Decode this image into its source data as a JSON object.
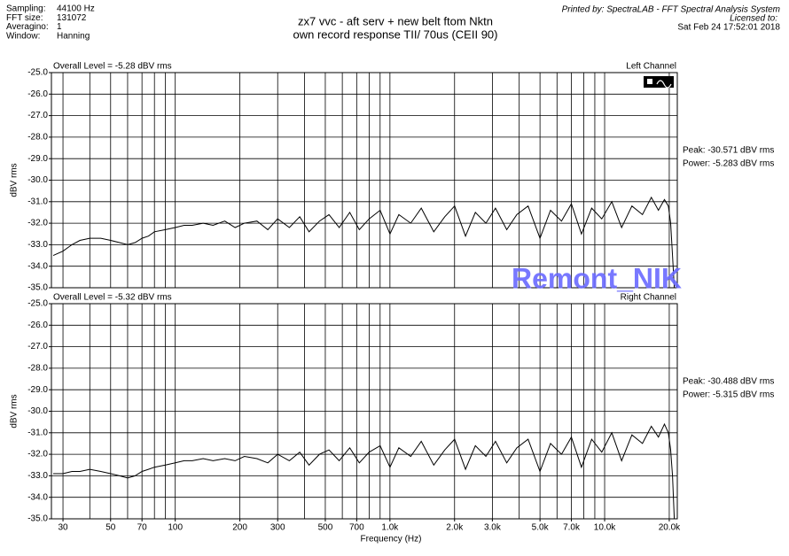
{
  "header": {
    "info": [
      {
        "label": "Sampling:",
        "value": "44100 Hz"
      },
      {
        "label": "FFT size:",
        "value": "131072"
      },
      {
        "label": "Averagino:",
        "value": "1"
      },
      {
        "label": "Window:",
        "value": "Hanning"
      }
    ],
    "title": [
      "zx7 vvc -  aft serv + new belt ftom Nktn",
      "own record response TII/ 70us (CEII 90)"
    ],
    "printed_by": "Printed by: SpectraLAB - FFT Spectral Analysis System",
    "licensed": "Licensed to:",
    "date": "Sat Feb 24 17:52:01 2018"
  },
  "watermark": "Remont_NIK",
  "chart_data": [
    {
      "type": "line",
      "title": "Left Channel",
      "overall": "Overall Level = -5.28 dBV rms",
      "peak": "Peak: -30.571 dBV rms",
      "power": "Power: -5.283 dBV rms",
      "ylabel": "dBV rms",
      "log_x": true,
      "grid": true,
      "color": "#000000",
      "xlim": [
        26.5,
        21800
      ],
      "ylim": [
        -35,
        -25
      ],
      "yticks": [
        {
          "value": -25,
          "label": "-25.0"
        },
        {
          "value": -26,
          "label": "-26.0"
        },
        {
          "value": -27,
          "label": "-27.0"
        },
        {
          "value": -28,
          "label": "-28.0"
        },
        {
          "value": -29,
          "label": "-29.0"
        },
        {
          "value": -30,
          "label": "-30.0"
        },
        {
          "value": -31,
          "label": "-31.0"
        },
        {
          "value": -32,
          "label": "-32.0"
        },
        {
          "value": -33,
          "label": "-33.0"
        },
        {
          "value": -34,
          "label": "-34.0"
        },
        {
          "value": -35,
          "label": "-35.0"
        }
      ],
      "xgrid": [
        30,
        40,
        50,
        60,
        70,
        80,
        90,
        100,
        200,
        300,
        400,
        500,
        600,
        700,
        800,
        900,
        1000,
        2000,
        3000,
        4000,
        5000,
        6000,
        7000,
        8000,
        9000,
        10000,
        20000
      ],
      "x": [
        27,
        30,
        33,
        36,
        40,
        45,
        50,
        55,
        60,
        65,
        70,
        75,
        80,
        90,
        100,
        110,
        120,
        135,
        150,
        170,
        190,
        210,
        240,
        270,
        300,
        340,
        380,
        420,
        470,
        520,
        580,
        650,
        720,
        800,
        900,
        1000,
        1100,
        1250,
        1400,
        1600,
        1800,
        2000,
        2250,
        2500,
        2800,
        3100,
        3500,
        3900,
        4400,
        5000,
        5600,
        6300,
        7000,
        7800,
        8700,
        9700,
        10800,
        12000,
        13400,
        15000,
        16500,
        17800,
        19000,
        19800,
        20300,
        20700,
        21100
      ],
      "values": [
        -33.5,
        -33.3,
        -33.0,
        -32.8,
        -32.7,
        -32.7,
        -32.8,
        -32.9,
        -33.0,
        -32.9,
        -32.7,
        -32.6,
        -32.4,
        -32.3,
        -32.2,
        -32.1,
        -32.1,
        -32.0,
        -32.1,
        -31.9,
        -32.2,
        -32.0,
        -31.9,
        -32.3,
        -31.8,
        -32.2,
        -31.7,
        -32.4,
        -31.9,
        -31.6,
        -32.2,
        -31.5,
        -32.3,
        -31.8,
        -31.4,
        -32.5,
        -31.6,
        -32.0,
        -31.3,
        -32.4,
        -31.7,
        -31.2,
        -32.6,
        -31.5,
        -32.0,
        -31.3,
        -32.3,
        -31.6,
        -31.2,
        -32.7,
        -31.4,
        -31.9,
        -31.1,
        -32.5,
        -31.3,
        -31.8,
        -31.0,
        -32.2,
        -31.2,
        -31.6,
        -30.8,
        -31.4,
        -30.9,
        -31.2,
        -32.0,
        -33.5,
        -35.0
      ]
    },
    {
      "type": "line",
      "title": "Right Channel",
      "overall": "Overall Level = -5.32 dBV rms",
      "peak": "Peak: -30.488 dBV rms",
      "power": "Power: -5.315 dBV rms",
      "ylabel": "dBV rms",
      "xlabel": "Frequency (Hz)",
      "log_x": true,
      "grid": true,
      "color": "#000000",
      "xlim": [
        26.5,
        21800
      ],
      "ylim": [
        -35,
        -25
      ],
      "yticks": [
        {
          "value": -25,
          "label": "-25.0"
        },
        {
          "value": -26,
          "label": "-26.0"
        },
        {
          "value": -27,
          "label": "-27.0"
        },
        {
          "value": -28,
          "label": "-28.0"
        },
        {
          "value": -29,
          "label": "-29.0"
        },
        {
          "value": -30,
          "label": "-30.0"
        },
        {
          "value": -31,
          "label": "-31.0"
        },
        {
          "value": -32,
          "label": "-32.0"
        },
        {
          "value": -33,
          "label": "-33.0"
        },
        {
          "value": -34,
          "label": "-34.0"
        },
        {
          "value": -35,
          "label": "-35.0"
        }
      ],
      "xgrid": [
        30,
        40,
        50,
        60,
        70,
        80,
        90,
        100,
        200,
        300,
        400,
        500,
        600,
        700,
        800,
        900,
        1000,
        2000,
        3000,
        4000,
        5000,
        6000,
        7000,
        8000,
        9000,
        10000,
        20000
      ],
      "xticks": [
        30,
        50,
        70,
        100,
        200,
        300,
        500,
        700,
        {
          "value": 1000,
          "label": "1.0k"
        },
        {
          "value": 2000,
          "label": "2.0k"
        },
        {
          "value": 3000,
          "label": "3.0k"
        },
        {
          "value": 5000,
          "label": "5.0k"
        },
        {
          "value": 7000,
          "label": "7.0k"
        },
        {
          "value": 10000,
          "label": "10.0k"
        },
        {
          "value": 20000,
          "label": "20.0k"
        }
      ],
      "x": [
        27,
        30,
        33,
        36,
        40,
        45,
        50,
        55,
        60,
        65,
        70,
        75,
        80,
        90,
        100,
        110,
        120,
        135,
        150,
        170,
        190,
        210,
        240,
        270,
        300,
        340,
        380,
        420,
        470,
        520,
        580,
        650,
        720,
        800,
        900,
        1000,
        1100,
        1250,
        1400,
        1600,
        1800,
        2000,
        2250,
        2500,
        2800,
        3100,
        3500,
        3900,
        4400,
        5000,
        5600,
        6300,
        7000,
        7800,
        8700,
        9700,
        10800,
        12000,
        13400,
        15000,
        16500,
        17800,
        19000,
        19800,
        20300,
        20700,
        21100
      ],
      "values": [
        -32.9,
        -32.9,
        -32.8,
        -32.8,
        -32.7,
        -32.8,
        -32.9,
        -33.0,
        -33.1,
        -33.0,
        -32.8,
        -32.7,
        -32.6,
        -32.5,
        -32.4,
        -32.3,
        -32.3,
        -32.2,
        -32.3,
        -32.2,
        -32.3,
        -32.1,
        -32.2,
        -32.4,
        -32.0,
        -32.3,
        -31.9,
        -32.5,
        -32.0,
        -31.8,
        -32.3,
        -31.7,
        -32.4,
        -31.9,
        -31.6,
        -32.6,
        -31.7,
        -32.1,
        -31.4,
        -32.5,
        -31.8,
        -31.3,
        -32.7,
        -31.6,
        -32.1,
        -31.4,
        -32.4,
        -31.7,
        -31.3,
        -32.8,
        -31.5,
        -32.0,
        -31.2,
        -32.6,
        -31.3,
        -31.9,
        -31.0,
        -32.3,
        -31.1,
        -31.5,
        -30.7,
        -31.2,
        -30.6,
        -31.0,
        -31.8,
        -33.0,
        -35.0
      ]
    }
  ]
}
